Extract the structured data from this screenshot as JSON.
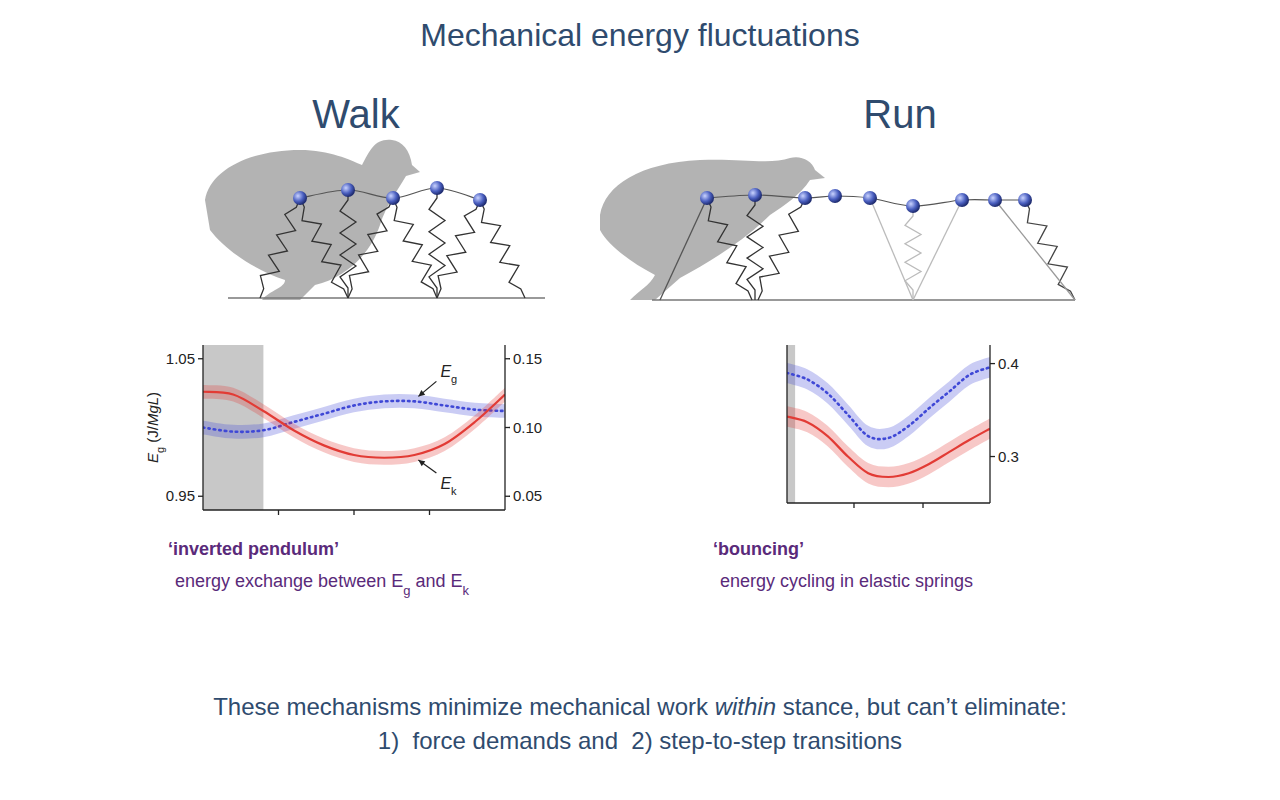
{
  "title": "Mechanical energy fluctuations",
  "panels": [
    {
      "heading": "Walk",
      "caption": {
        "title": "‘inverted pendulum’",
        "text": [
          {
            "text": "energy exchange between E"
          },
          {
            "text": "g",
            "sub": true
          },
          {
            "text": " and E"
          },
          {
            "text": "k",
            "sub": true
          }
        ]
      }
    },
    {
      "heading": "Run",
      "caption": {
        "title": "‘bouncing’",
        "text": [
          {
            "text": "energy cycling in elastic springs"
          }
        ]
      }
    }
  ],
  "footer": {
    "lines": [
      [
        {
          "text": "These mechanisms minimize mechanical work "
        },
        {
          "text": "within",
          "italic": true
        },
        {
          "text": " stance, but can’t eliminate:"
        }
      ],
      [
        {
          "text": "1)  force demands and  2) step-to-step transitions"
        }
      ]
    ]
  },
  "chart_data": [
    {
      "type": "line",
      "ylabel": [
        {
          "text": "E",
          "italic": true
        },
        {
          "text": "g",
          "sub": true
        },
        {
          "text": " (J/"
        },
        {
          "text": "MgL",
          "italic": true
        },
        {
          "text": ")"
        }
      ],
      "x": [
        0,
        10,
        20,
        30,
        40,
        50,
        60,
        70,
        80,
        90,
        100
      ],
      "xlim": [
        0,
        100
      ],
      "xticks": [
        25,
        50,
        75
      ],
      "ylim": [
        0.94,
        1.06
      ],
      "yticks": [
        0.95,
        1.05
      ],
      "y2lim": [
        0.04,
        0.16
      ],
      "y2ticks": [
        0.05,
        {
          "value": 0.1,
          "label": "0.10"
        },
        0.15
      ],
      "tick_labels": "y",
      "shaded_x": [
        0,
        20
      ],
      "annotations": [
        "Eg",
        "Ek"
      ],
      "series": [
        {
          "name": "Eg",
          "color": "#3f48d6",
          "line_style": "dotted",
          "values": [
            1.0,
            0.997,
            0.998,
            1.004,
            1.01,
            1.016,
            1.019,
            1.019,
            1.016,
            1.013,
            1.012
          ],
          "errors": [
            0.005,
            0.005,
            0.005,
            0.005,
            0.005,
            0.005,
            0.005,
            0.005,
            0.005,
            0.005,
            0.005
          ]
        },
        {
          "name": "Ek",
          "color": "#e23b35",
          "line_style": "solid",
          "axis": "y2",
          "values": [
            0.126,
            0.124,
            0.112,
            0.098,
            0.087,
            0.08,
            0.078,
            0.08,
            0.088,
            0.104,
            0.124
          ],
          "errors": [
            0.005,
            0.005,
            0.005,
            0.005,
            0.005,
            0.005,
            0.005,
            0.005,
            0.005,
            0.005,
            0.005
          ]
        }
      ]
    },
    {
      "type": "line",
      "x": [
        0,
        10,
        20,
        30,
        40,
        50,
        60,
        70,
        80,
        90,
        100
      ],
      "xlim": [
        0,
        100
      ],
      "xticks": [
        33,
        67
      ],
      "y2lim": [
        0.25,
        0.42
      ],
      "y2ticks": [
        0.3,
        0.4
      ],
      "tick_labels": "y",
      "shaded_x": [
        0,
        4
      ],
      "series": [
        {
          "name": "Eg",
          "color": "#3f48d6",
          "line_style": "dotted",
          "axis": "y2",
          "values": [
            0.39,
            0.383,
            0.368,
            0.345,
            0.322,
            0.32,
            0.333,
            0.352,
            0.37,
            0.388,
            0.396
          ],
          "errors": [
            0.011,
            0.011,
            0.011,
            0.011,
            0.011,
            0.011,
            0.011,
            0.011,
            0.011,
            0.011,
            0.011
          ]
        },
        {
          "name": "Ek",
          "color": "#e23b35",
          "line_style": "solid",
          "axis": "y2",
          "values": [
            0.343,
            0.337,
            0.322,
            0.3,
            0.282,
            0.278,
            0.282,
            0.292,
            0.305,
            0.318,
            0.33
          ],
          "errors": [
            0.011,
            0.011,
            0.011,
            0.011,
            0.011,
            0.011,
            0.011,
            0.011,
            0.011,
            0.011,
            0.011
          ]
        }
      ]
    }
  ]
}
